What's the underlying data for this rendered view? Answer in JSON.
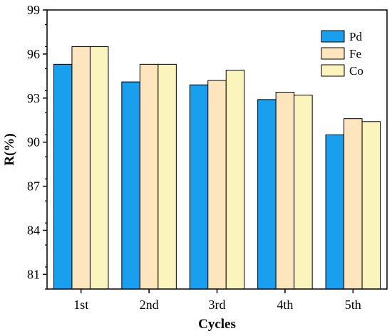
{
  "chart_data": {
    "type": "bar",
    "title": "",
    "xlabel": "Cycles",
    "ylabel": "R(%)",
    "categories": [
      "1st",
      "2nd",
      "3rd",
      "4th",
      "5th"
    ],
    "series": [
      {
        "name": "Pd",
        "values": [
          95.3,
          94.1,
          93.9,
          92.9,
          90.5
        ],
        "color": "#1a9fef"
      },
      {
        "name": "Fe",
        "values": [
          96.5,
          95.3,
          94.2,
          93.4,
          91.6
        ],
        "color": "#fde6bd"
      },
      {
        "name": "Co",
        "values": [
          96.5,
          95.3,
          94.9,
          93.2,
          91.4
        ],
        "color": "#fcf4bd"
      }
    ],
    "ylim": [
      80,
      99
    ],
    "yticks": [
      81,
      84,
      87,
      90,
      93,
      96,
      99
    ],
    "grid": false,
    "legend_position": "top-right"
  }
}
